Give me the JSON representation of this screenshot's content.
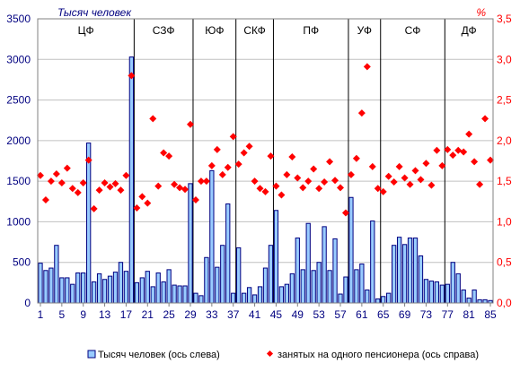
{
  "chart_data": {
    "type": "bar",
    "left_axis_unit": "Тысяч человек",
    "right_axis_unit": "%",
    "ylim_left": [
      0,
      3500
    ],
    "ylim_right": [
      0,
      3.5
    ],
    "left_ticks": [
      "0",
      "500",
      "1000",
      "1500",
      "2000",
      "2500",
      "3000",
      "3500"
    ],
    "right_ticks": [
      "0,0",
      "0,5",
      "1,0",
      "1,5",
      "2,0",
      "2,5",
      "3,0",
      "3,5"
    ],
    "x_ticks": [
      "1",
      "5",
      "9",
      "13",
      "17",
      "21",
      "25",
      "29",
      "33",
      "37",
      "41",
      "45",
      "49",
      "53",
      "57",
      "61",
      "65",
      "69",
      "73",
      "77",
      "81",
      "85"
    ],
    "grid": true,
    "legend_position": "bottom",
    "regions": [
      {
        "label": "ЦФ",
        "start": 1,
        "end": 18
      },
      {
        "label": "СЗФ",
        "start": 19,
        "end": 29
      },
      {
        "label": "ЮФ",
        "start": 30,
        "end": 37
      },
      {
        "label": "СКФ",
        "start": 38,
        "end": 44
      },
      {
        "label": "ПФ",
        "start": 45,
        "end": 58
      },
      {
        "label": "УФ",
        "start": 59,
        "end": 64
      },
      {
        "label": "СФ",
        "start": 65,
        "end": 76
      },
      {
        "label": "ДФ",
        "start": 77,
        "end": 85
      }
    ],
    "series": [
      {
        "name": "Тысяч человек (ось слева)",
        "type": "bar",
        "axis": "left",
        "values": [
          490,
          400,
          430,
          710,
          310,
          310,
          230,
          370,
          370,
          1970,
          260,
          360,
          290,
          330,
          380,
          500,
          390,
          3030,
          250,
          310,
          390,
          200,
          370,
          260,
          410,
          220,
          210,
          210,
          1470,
          120,
          90,
          560,
          1630,
          440,
          710,
          1220,
          120,
          680,
          120,
          190,
          100,
          200,
          430,
          710,
          1140,
          200,
          230,
          360,
          800,
          410,
          980,
          400,
          500,
          940,
          400,
          790,
          110,
          320,
          1300,
          410,
          480,
          160,
          1010,
          50,
          80,
          120,
          710,
          810,
          720,
          800,
          800,
          580,
          290,
          270,
          260,
          220,
          230,
          500,
          360,
          160,
          60,
          160,
          40,
          40,
          30
        ]
      },
      {
        "name": "занятых на одного пенсионера (ось справа)",
        "type": "scatter",
        "axis": "right",
        "values": [
          1.57,
          1.27,
          1.5,
          1.59,
          1.48,
          1.66,
          1.41,
          1.36,
          1.48,
          1.76,
          1.16,
          1.39,
          1.48,
          1.43,
          1.47,
          1.39,
          1.57,
          2.8,
          1.17,
          1.31,
          1.23,
          2.27,
          1.44,
          1.85,
          1.81,
          1.46,
          1.42,
          1.4,
          2.2,
          1.27,
          1.5,
          1.5,
          1.69,
          1.89,
          1.58,
          1.67,
          2.05,
          1.71,
          1.85,
          1.93,
          1.5,
          1.41,
          1.37,
          1.81,
          1.44,
          1.33,
          1.58,
          1.8,
          1.54,
          1.42,
          1.5,
          1.65,
          1.41,
          1.49,
          1.74,
          1.51,
          1.42,
          1.11,
          1.58,
          1.78,
          2.34,
          2.91,
          1.68,
          1.41,
          1.37,
          1.56,
          1.49,
          1.68,
          1.54,
          1.46,
          1.63,
          1.52,
          1.72,
          1.45,
          1.88,
          1.69,
          1.89,
          1.82,
          1.88,
          1.86,
          2.08,
          1.74,
          1.46,
          2.27,
          1.76
        ]
      }
    ]
  },
  "colors": {
    "bar_fill": "#99ccff",
    "bar_stroke": "#000080",
    "marker": "#ff0000",
    "left_axis_text": "#000080",
    "right_axis_text": "#ff0000",
    "grid": "#c0c0c0",
    "separator": "#000000"
  }
}
